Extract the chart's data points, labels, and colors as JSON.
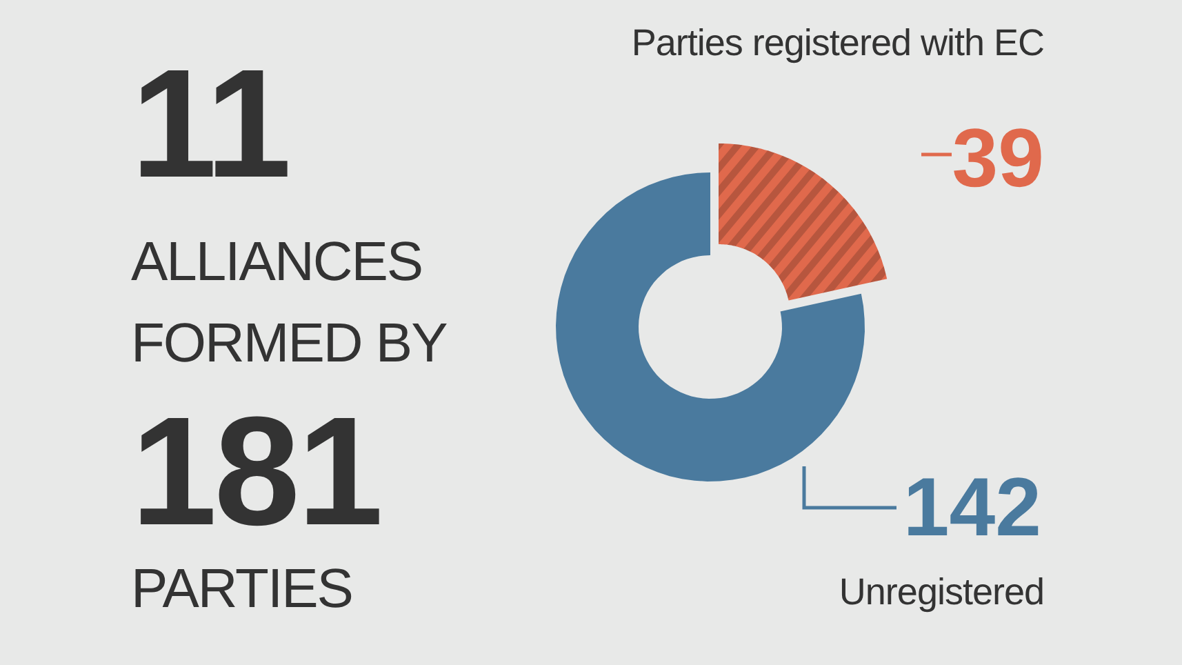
{
  "chart_data": {
    "type": "donut",
    "categories": [
      "Parties registered with EC",
      "Unregistered"
    ],
    "values": [
      39,
      142
    ],
    "colors": [
      "#e0694c",
      "#4a7a9e"
    ],
    "data_labels": true,
    "annotations": [
      "11",
      "ALLIANCES",
      "FORMED BY",
      "181",
      "PARTIES"
    ]
  }
}
